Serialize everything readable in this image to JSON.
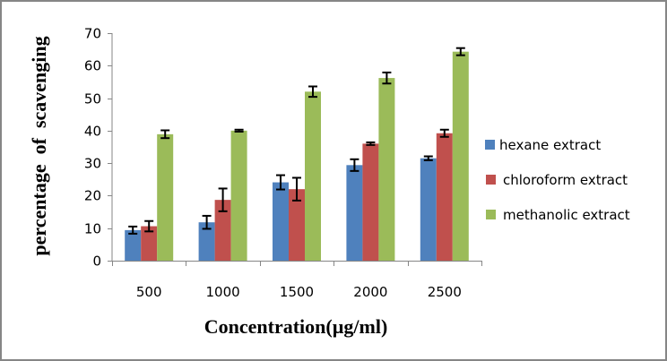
{
  "chart_data": {
    "type": "bar",
    "title": "",
    "xlabel": "Concentration(µg/ml)",
    "ylabel": "percentage  of  scavenging",
    "categories": [
      "500",
      "1000",
      "1500",
      "2000",
      "2500"
    ],
    "ylim": [
      0,
      70
    ],
    "yticks": [
      0,
      10,
      20,
      30,
      40,
      50,
      60,
      70
    ],
    "ytick_labels": [
      "0",
      "10",
      "20",
      "30",
      "40",
      "50",
      "60",
      "70"
    ],
    "grid": false,
    "legend_position": "right",
    "series": [
      {
        "name": "hexane extract",
        "color": "#4f81bd",
        "values": [
          9.4,
          11.8,
          24.1,
          29.4,
          31.5
        ],
        "errors": [
          1.1,
          2.0,
          2.2,
          1.8,
          0.6
        ]
      },
      {
        "name": "chloroform extract",
        "color": "#c0504d",
        "values": [
          10.6,
          18.7,
          22.0,
          36.0,
          39.2
        ],
        "errors": [
          1.6,
          3.5,
          3.5,
          0.4,
          1.1
        ]
      },
      {
        "name": "methanolic extract",
        "color": "#9bbb59",
        "values": [
          38.9,
          40.0,
          52.0,
          56.2,
          64.3
        ],
        "errors": [
          1.2,
          0.3,
          1.6,
          1.7,
          1.1
        ]
      }
    ]
  }
}
